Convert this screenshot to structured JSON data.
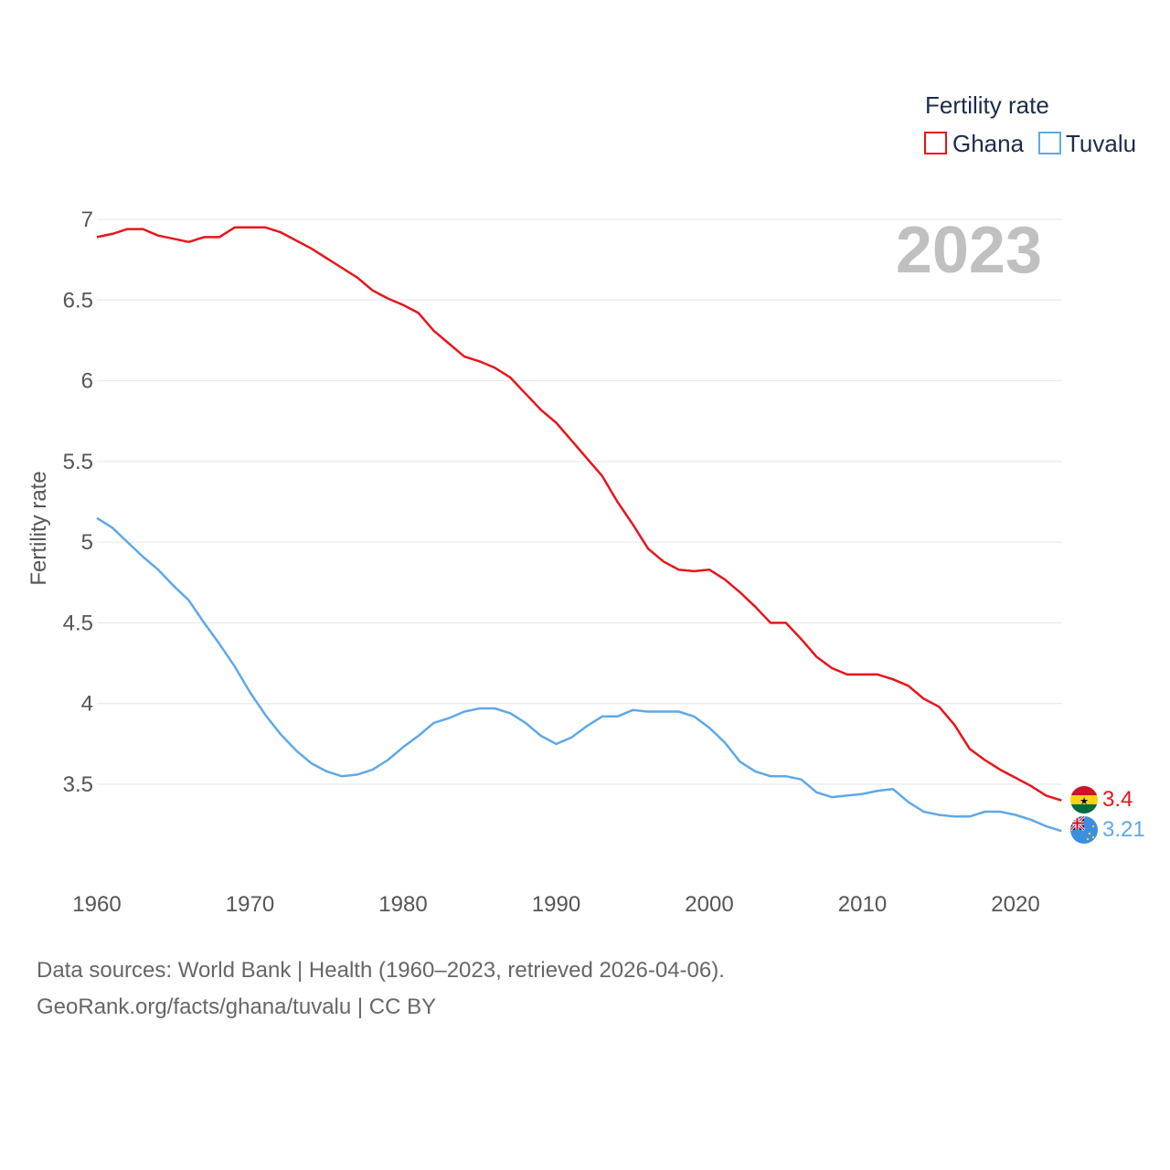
{
  "chart_data": {
    "type": "line",
    "title": "Fertility rate",
    "ylabel": "Fertility rate",
    "xlabel": "",
    "ylim": [
      3.0,
      7.0
    ],
    "xlim": [
      1960,
      2023
    ],
    "y_ticks": [
      3.5,
      4,
      4.5,
      5,
      5.5,
      6,
      6.5,
      7
    ],
    "y_tick_labels": [
      "3.5",
      "4",
      "4.5",
      "5",
      "5.5",
      "6",
      "6.5",
      "7"
    ],
    "x_ticks": [
      1960,
      1970,
      1980,
      1990,
      2000,
      2010,
      2020
    ],
    "x_tick_labels": [
      "1960",
      "1970",
      "1980",
      "1990",
      "2000",
      "2010",
      "2020"
    ],
    "current_year": "2023",
    "grid": true,
    "legend_position": "top-right",
    "x": [
      1960,
      1961,
      1962,
      1963,
      1964,
      1965,
      1966,
      1967,
      1968,
      1969,
      1970,
      1971,
      1972,
      1973,
      1974,
      1975,
      1976,
      1977,
      1978,
      1979,
      1980,
      1981,
      1982,
      1983,
      1984,
      1985,
      1986,
      1987,
      1988,
      1989,
      1990,
      1991,
      1992,
      1993,
      1994,
      1995,
      1996,
      1997,
      1998,
      1999,
      2000,
      2001,
      2002,
      2003,
      2004,
      2005,
      2006,
      2007,
      2008,
      2009,
      2010,
      2011,
      2012,
      2013,
      2014,
      2015,
      2016,
      2017,
      2018,
      2019,
      2020,
      2021,
      2022,
      2023
    ],
    "series": [
      {
        "name": "Ghana",
        "color": "#e8141b",
        "end_label": "3.4",
        "flag": "ghana-flag",
        "values": [
          6.89,
          6.91,
          6.94,
          6.94,
          6.9,
          6.88,
          6.86,
          6.89,
          6.89,
          6.95,
          6.95,
          6.95,
          6.92,
          6.87,
          6.82,
          6.76,
          6.7,
          6.64,
          6.56,
          6.51,
          6.47,
          6.42,
          6.31,
          6.23,
          6.15,
          6.12,
          6.08,
          6.02,
          5.92,
          5.82,
          5.74,
          5.63,
          5.52,
          5.41,
          5.25,
          5.11,
          4.96,
          4.88,
          4.83,
          4.82,
          4.83,
          4.77,
          4.69,
          4.6,
          4.5,
          4.5,
          4.4,
          4.29,
          4.22,
          4.18,
          4.18,
          4.18,
          4.15,
          4.11,
          4.03,
          3.98,
          3.87,
          3.72,
          3.65,
          3.59,
          3.54,
          3.49,
          3.43,
          3.4
        ]
      },
      {
        "name": "Tuvalu",
        "color": "#5fa8e8",
        "end_label": "3.21",
        "flag": "tuvalu-flag",
        "values": [
          5.15,
          5.09,
          5.0,
          4.91,
          4.83,
          4.73,
          4.64,
          4.5,
          4.37,
          4.23,
          4.07,
          3.93,
          3.81,
          3.71,
          3.63,
          3.58,
          3.55,
          3.56,
          3.59,
          3.65,
          3.73,
          3.8,
          3.88,
          3.91,
          3.95,
          3.97,
          3.97,
          3.94,
          3.88,
          3.8,
          3.75,
          3.79,
          3.86,
          3.92,
          3.92,
          3.96,
          3.95,
          3.95,
          3.95,
          3.92,
          3.85,
          3.76,
          3.64,
          3.58,
          3.55,
          3.55,
          3.53,
          3.45,
          3.42,
          3.43,
          3.44,
          3.46,
          3.47,
          3.39,
          3.33,
          3.31,
          3.3,
          3.3,
          3.33,
          3.33,
          3.31,
          3.28,
          3.24,
          3.21
        ]
      }
    ]
  },
  "source": {
    "line1": "Data sources: World Bank | Health (1960–2023, retrieved 2026-04-06).",
    "line2": "GeoRank.org/facts/ghana/tuvalu | CC BY"
  }
}
